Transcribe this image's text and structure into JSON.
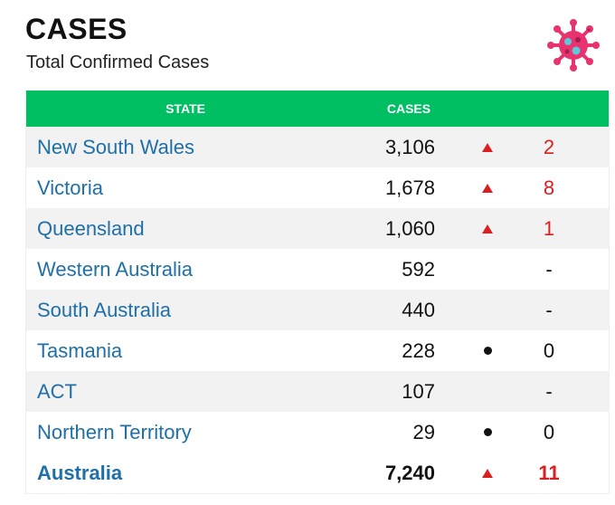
{
  "header": {
    "title": "CASES",
    "subtitle": "Total Confirmed Cases",
    "icon": "virus-icon"
  },
  "table": {
    "columns": {
      "state": "STATE",
      "cases": "CASES"
    },
    "rows": [
      {
        "state": "New South Wales",
        "cases": "3,106",
        "trend": "up",
        "change": "2"
      },
      {
        "state": "Victoria",
        "cases": "1,678",
        "trend": "up",
        "change": "8"
      },
      {
        "state": "Queensland",
        "cases": "1,060",
        "trend": "up",
        "change": "1"
      },
      {
        "state": "Western Australia",
        "cases": "592",
        "trend": "none",
        "change": "-"
      },
      {
        "state": "South Australia",
        "cases": "440",
        "trend": "none",
        "change": "-"
      },
      {
        "state": "Tasmania",
        "cases": "228",
        "trend": "steady",
        "change": "0"
      },
      {
        "state": "ACT",
        "cases": "107",
        "trend": "none",
        "change": "-"
      },
      {
        "state": "Northern Territory",
        "cases": "29",
        "trend": "steady",
        "change": "0"
      }
    ],
    "total": {
      "state": "Australia",
      "cases": "7,240",
      "trend": "up",
      "change": "11"
    }
  },
  "colors": {
    "header_bg": "#00bf63",
    "link": "#1f6fa8",
    "increase": "#d92020",
    "virus": "#e8336f"
  }
}
